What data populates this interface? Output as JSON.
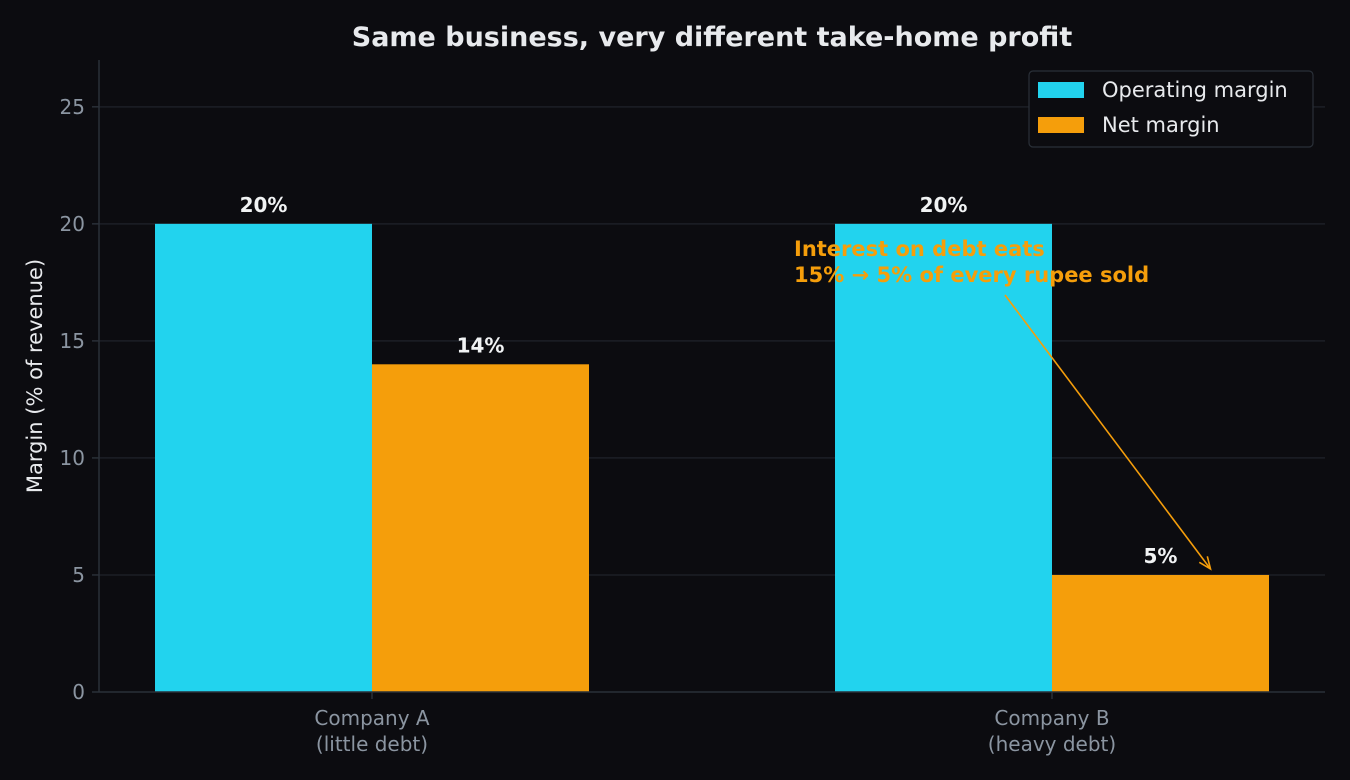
{
  "chart_data": {
    "type": "bar",
    "title": "Same business, very different take-home profit",
    "xlabel": "",
    "ylabel": "Margin (% of revenue)",
    "ylim": [
      0,
      27
    ],
    "yticks": [
      0,
      5,
      10,
      15,
      20,
      25
    ],
    "grid": true,
    "legend_position": "top-right",
    "categories": [
      [
        "Company A",
        "(little debt)"
      ],
      [
        "Company B",
        "(heavy debt)"
      ]
    ],
    "series": [
      {
        "name": "Operating margin",
        "values": [
          20,
          20
        ],
        "labels": [
          "20%",
          "20%"
        ],
        "color": "#22d3ee"
      },
      {
        "name": "Net margin",
        "values": [
          14,
          5
        ],
        "labels": [
          "14%",
          "5%"
        ],
        "color": "#f59e0b"
      }
    ],
    "annotation": {
      "lines": [
        "Interest on debt eats",
        "15% → 5% of every rupee sold"
      ],
      "color": "#f59e0b",
      "target_category": 1,
      "target_series": 1
    }
  },
  "colors": {
    "background": "#0c0c10",
    "grid": "#1c1f26",
    "axis": "#2a3038"
  }
}
